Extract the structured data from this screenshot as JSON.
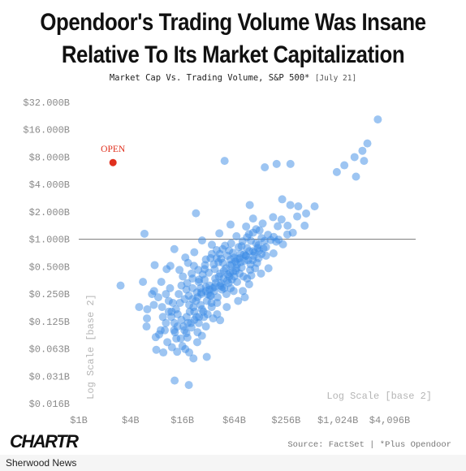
{
  "header": {
    "title_line1": "Opendoor's Trading Volume Was Insane",
    "title_line2": "Relative To Its Market Capitalization",
    "subtitle": "Market Cap Vs. Trading Volume, S&P 500*",
    "date": "[July 21]"
  },
  "footer": {
    "logo": "CHARTR",
    "source": "Source: FactSet | *Plus Opendoor",
    "publisher": "Sherwood News"
  },
  "colors": {
    "points": "#3b8be6",
    "highlight": "#e0301e",
    "reference_line": "#777777"
  },
  "chart_data": {
    "type": "scatter",
    "title": "Market Cap Vs. Trading Volume, S&P 500*",
    "xlabel": "Log Scale [base 2]",
    "ylabel": "Log Scale [base 2]",
    "x_scale": "log2",
    "y_scale": "log2",
    "x_unit": "market cap ($B)",
    "y_unit": "trading volume ($B)",
    "xlim": [
      1,
      4096
    ],
    "ylim": [
      0.015625,
      32
    ],
    "x_ticks": [
      {
        "value": 1,
        "label": "$1B"
      },
      {
        "value": 4,
        "label": "$4B"
      },
      {
        "value": 16,
        "label": "$16B"
      },
      {
        "value": 64,
        "label": "$64B"
      },
      {
        "value": 256,
        "label": "$256B"
      },
      {
        "value": 1024,
        "label": "$1,024B"
      },
      {
        "value": 4096,
        "label": "$4,096B"
      }
    ],
    "y_ticks": [
      {
        "value": 32,
        "label": "$32.000B"
      },
      {
        "value": 16,
        "label": "$16.000B"
      },
      {
        "value": 8,
        "label": "$8.000B"
      },
      {
        "value": 4,
        "label": "$4.000B"
      },
      {
        "value": 2,
        "label": "$2.000B"
      },
      {
        "value": 1,
        "label": "$1.000B"
      },
      {
        "value": 0.5,
        "label": "$0.500B"
      },
      {
        "value": 0.25,
        "label": "$0.250B"
      },
      {
        "value": 0.125,
        "label": "$0.125B"
      },
      {
        "value": 0.0625,
        "label": "$0.063B"
      },
      {
        "value": 0.03125,
        "label": "$0.031B"
      },
      {
        "value": 0.015625,
        "label": "$0.016B"
      }
    ],
    "reference_line_y": 1,
    "grid": false,
    "legend": "none",
    "highlight": {
      "label": "OPEN",
      "x": 2.5,
      "y": 6.96
    },
    "series": [
      {
        "points": [
          [
            2982,
            20.75
          ],
          [
            2255,
            11.3
          ],
          [
            1975,
            9.38
          ],
          [
            1600,
            8.0
          ],
          [
            1218,
            6.5
          ],
          [
            996,
            5.48
          ],
          [
            2063,
            7.27
          ],
          [
            1663,
            4.88
          ],
          [
            49.5,
            7.27
          ],
          [
            145,
            6.18
          ],
          [
            199,
            6.73
          ],
          [
            288,
            6.73
          ],
          [
            231,
            2.75
          ],
          [
            287,
            2.38
          ],
          [
            355,
            2.3
          ],
          [
            438,
            1.92
          ],
          [
            550,
            2.3
          ],
          [
            345,
            1.78
          ],
          [
            421,
            1.41
          ],
          [
            23,
            1.93
          ],
          [
            97,
            2.38
          ],
          [
            181,
            1.75
          ],
          [
            106,
            1.69
          ],
          [
            227,
            1.65
          ],
          [
            5.8,
            1.15
          ],
          [
            58,
            1.45
          ],
          [
            267,
            1.41
          ],
          [
            307,
            1.18
          ],
          [
            205,
            1.39
          ],
          [
            115,
            1.29
          ],
          [
            137,
            1.49
          ],
          [
            88,
            1.38
          ],
          [
            95,
            1.14
          ],
          [
            68,
            1.08
          ],
          [
            184,
            1.06
          ],
          [
            144,
            0.96
          ],
          [
            43,
            1.16
          ],
          [
            27.1,
            0.97
          ],
          [
            35.2,
            0.87
          ],
          [
            78,
            0.84
          ],
          [
            150,
            0.82
          ],
          [
            106,
            0.74
          ],
          [
            88,
            0.66
          ],
          [
            64,
            0.63
          ],
          [
            40,
            0.62
          ],
          [
            30,
            0.6
          ],
          [
            22,
            0.72
          ],
          [
            12.9,
            0.78
          ],
          [
            17.3,
            0.63
          ],
          [
            11.6,
            0.51
          ],
          [
            7.62,
            0.52
          ],
          [
            10.5,
            0.47
          ],
          [
            3.06,
            0.31
          ],
          [
            9.1,
            0.34
          ],
          [
            5.57,
            0.34
          ],
          [
            7.5,
            0.27
          ],
          [
            6.25,
            0.17
          ],
          [
            5.03,
            0.18
          ],
          [
            7.45,
            0.19
          ],
          [
            11.1,
            0.16
          ],
          [
            6.13,
            0.11
          ],
          [
            8.95,
            0.1
          ],
          [
            12.9,
            0.12
          ],
          [
            12.0,
            0.16
          ],
          [
            17.9,
            0.14
          ],
          [
            24.8,
            0.12
          ],
          [
            30.0,
            0.11
          ],
          [
            40.5,
            0.2
          ],
          [
            58.2,
            0.29
          ],
          [
            80.5,
            0.27
          ],
          [
            46.2,
            0.3
          ],
          [
            33.6,
            0.24
          ],
          [
            26.6,
            0.25
          ],
          [
            21.0,
            0.22
          ],
          [
            10.3,
            0.25
          ],
          [
            15.6,
            0.31
          ],
          [
            7.84,
            0.084
          ],
          [
            10.7,
            0.074
          ],
          [
            13.1,
            0.095
          ],
          [
            16.0,
            0.067
          ],
          [
            23.8,
            0.074
          ],
          [
            19.2,
            0.057
          ],
          [
            21.5,
            0.049
          ],
          [
            13.9,
            0.058
          ],
          [
            9.61,
            0.057
          ],
          [
            7.96,
            0.061
          ],
          [
            17.3,
            0.062
          ],
          [
            13.0,
            0.028
          ],
          [
            19.0,
            0.025
          ],
          [
            30.7,
            0.051
          ],
          [
            27.0,
            0.087
          ],
          [
            36.4,
            0.135
          ],
          [
            43.9,
            0.129
          ],
          [
            52.4,
            0.18
          ],
          [
            69.1,
            0.34
          ],
          [
            90.3,
            0.37
          ],
          [
            66.4,
            0.45
          ],
          [
            47.3,
            0.55
          ],
          [
            29.3,
            0.52
          ],
          [
            20.5,
            0.42
          ],
          [
            24.8,
            0.34
          ],
          [
            38.5,
            0.37
          ],
          [
            32.4,
            0.43
          ],
          [
            58.0,
            0.6
          ],
          [
            73.9,
            0.42
          ],
          [
            123,
            0.62
          ],
          [
            99.0,
            0.53
          ],
          [
            131,
            0.42
          ],
          [
            75.7,
            0.69
          ],
          [
            55.8,
            0.75
          ],
          [
            47.0,
            0.78
          ],
          [
            35.2,
            0.69
          ],
          [
            14.8,
            0.46
          ],
          [
            18.6,
            0.55
          ],
          [
            26.0,
            0.29
          ],
          [
            19.2,
            0.19
          ],
          [
            12.4,
            0.2
          ],
          [
            14.1,
            0.15
          ],
          [
            15.6,
            0.13
          ],
          [
            9.5,
            0.14
          ],
          [
            6.2,
            0.135
          ],
          [
            11.5,
            0.29
          ],
          [
            21.0,
            0.37
          ],
          [
            17.8,
            0.28
          ],
          [
            23.6,
            0.26
          ],
          [
            30.0,
            0.3
          ],
          [
            34.8,
            0.2
          ],
          [
            40.5,
            0.15
          ],
          [
            44.1,
            0.42
          ],
          [
            52.0,
            0.25
          ],
          [
            60.1,
            0.36
          ],
          [
            62.0,
            0.44
          ],
          [
            71.0,
            0.21
          ],
          [
            84.0,
            0.58
          ],
          [
            90.0,
            0.8
          ],
          [
            110,
            0.72
          ],
          [
            118,
            0.55
          ],
          [
            122,
            0.86
          ],
          [
            133,
            0.69
          ],
          [
            160,
            0.48
          ],
          [
            170,
            0.98
          ],
          [
            95.4,
            0.32
          ],
          [
            85.0,
            0.23
          ],
          [
            101,
            0.4
          ],
          [
            12.8,
            0.1
          ],
          [
            16.9,
            0.1
          ],
          [
            28.5,
            0.14
          ],
          [
            22.0,
            0.16
          ],
          [
            20.1,
            0.12
          ],
          [
            30.8,
            0.21
          ],
          [
            37.5,
            0.27
          ],
          [
            45.0,
            0.33
          ],
          [
            51.2,
            0.48
          ],
          [
            57.0,
            0.52
          ],
          [
            66.0,
            0.57
          ],
          [
            78.0,
            0.49
          ],
          [
            42.0,
            0.56
          ],
          [
            38.0,
            0.47
          ],
          [
            27.5,
            0.41
          ],
          [
            25.0,
            0.36
          ],
          [
            18.2,
            0.33
          ],
          [
            16.2,
            0.39
          ],
          [
            14.5,
            0.25
          ],
          [
            11.1,
            0.21
          ],
          [
            9.3,
            0.18
          ],
          [
            8.4,
            0.23
          ],
          [
            7.1,
            0.25
          ],
          [
            10.3,
            0.12
          ],
          [
            13.6,
            0.081
          ],
          [
            18.3,
            0.083
          ],
          [
            24.0,
            0.095
          ],
          [
            31.4,
            0.15
          ],
          [
            34.3,
            0.24
          ],
          [
            48.0,
            0.37
          ],
          [
            55.0,
            0.33
          ],
          [
            63.0,
            0.27
          ],
          [
            82.0,
            0.39
          ],
          [
            105,
            0.59
          ],
          [
            140,
            0.79
          ],
          [
            197,
            0.94
          ],
          [
            236,
            0.88
          ],
          [
            115,
            0.9
          ],
          [
            100,
            0.96
          ],
          [
            70.0,
            0.61
          ],
          [
            62.0,
            0.71
          ],
          [
            53.0,
            0.66
          ],
          [
            45.0,
            0.61
          ],
          [
            39.0,
            0.33
          ],
          [
            33.0,
            0.31
          ],
          [
            29.0,
            0.36
          ],
          [
            26.0,
            0.19
          ],
          [
            23.0,
            0.21
          ],
          [
            21.0,
            0.29
          ],
          [
            19.0,
            0.24
          ],
          [
            17.0,
            0.22
          ],
          [
            15.0,
            0.2
          ],
          [
            13.5,
            0.17
          ],
          [
            11.9,
            0.14
          ],
          [
            10.0,
            0.1
          ],
          [
            8.6,
            0.09
          ],
          [
            12.1,
            0.065
          ],
          [
            15.3,
            0.081
          ],
          [
            17.8,
            0.093
          ],
          [
            20.4,
            0.107
          ],
          [
            23.3,
            0.14
          ],
          [
            27.0,
            0.17
          ],
          [
            31.5,
            0.25
          ],
          [
            36.0,
            0.29
          ],
          [
            42.5,
            0.39
          ],
          [
            48.5,
            0.45
          ],
          [
            54.0,
            0.41
          ],
          [
            60.0,
            0.53
          ],
          [
            68.0,
            0.48
          ],
          [
            76.0,
            0.56
          ],
          [
            87.0,
            0.66
          ],
          [
            96.0,
            0.74
          ],
          [
            108,
            0.66
          ],
          [
            125,
            0.75
          ],
          [
            150,
            0.66
          ],
          [
            29.0,
            0.47
          ],
          [
            24.5,
            0.46
          ],
          [
            21.8,
            0.51
          ],
          [
            37.0,
            0.53
          ],
          [
            43.5,
            0.69
          ],
          [
            50.0,
            0.85
          ],
          [
            34.0,
            0.62
          ],
          [
            40.0,
            0.76
          ],
          [
            59.0,
            0.9
          ],
          [
            72.0,
            0.82
          ],
          [
            80.0,
            0.95
          ],
          [
            90.0,
            1.05
          ],
          [
            106,
            1.18
          ],
          [
            126,
            1.25
          ],
          [
            56.0,
            0.39
          ],
          [
            46.0,
            0.28
          ],
          [
            41.0,
            0.23
          ],
          [
            35.0,
            0.18
          ],
          [
            28.0,
            0.16
          ],
          [
            25.0,
            0.14
          ],
          [
            22.0,
            0.13
          ],
          [
            18.5,
            0.12
          ],
          [
            16.5,
            0.11
          ],
          [
            14.0,
            0.11
          ],
          [
            19.5,
            0.16
          ],
          [
            21.5,
            0.18
          ],
          [
            24.0,
            0.23
          ],
          [
            26.5,
            0.26
          ],
          [
            30.0,
            0.27
          ],
          [
            33.0,
            0.28
          ],
          [
            38.0,
            0.3
          ],
          [
            44.0,
            0.31
          ],
          [
            49.0,
            0.29
          ],
          [
            53.0,
            0.35
          ],
          [
            57.5,
            0.43
          ],
          [
            64.0,
            0.39
          ],
          [
            69.0,
            0.53
          ],
          [
            74.0,
            0.62
          ],
          [
            83.0,
            0.68
          ],
          [
            93.0,
            0.59
          ],
          [
            98.0,
            0.46
          ],
          [
            112,
            0.48
          ],
          [
            120,
            0.8
          ],
          [
            133,
            1.03
          ],
          [
            158,
            1.12
          ],
          [
            183,
            0.7
          ],
          [
            210,
            0.99
          ],
          [
            265,
            1.13
          ]
        ]
      }
    ]
  }
}
